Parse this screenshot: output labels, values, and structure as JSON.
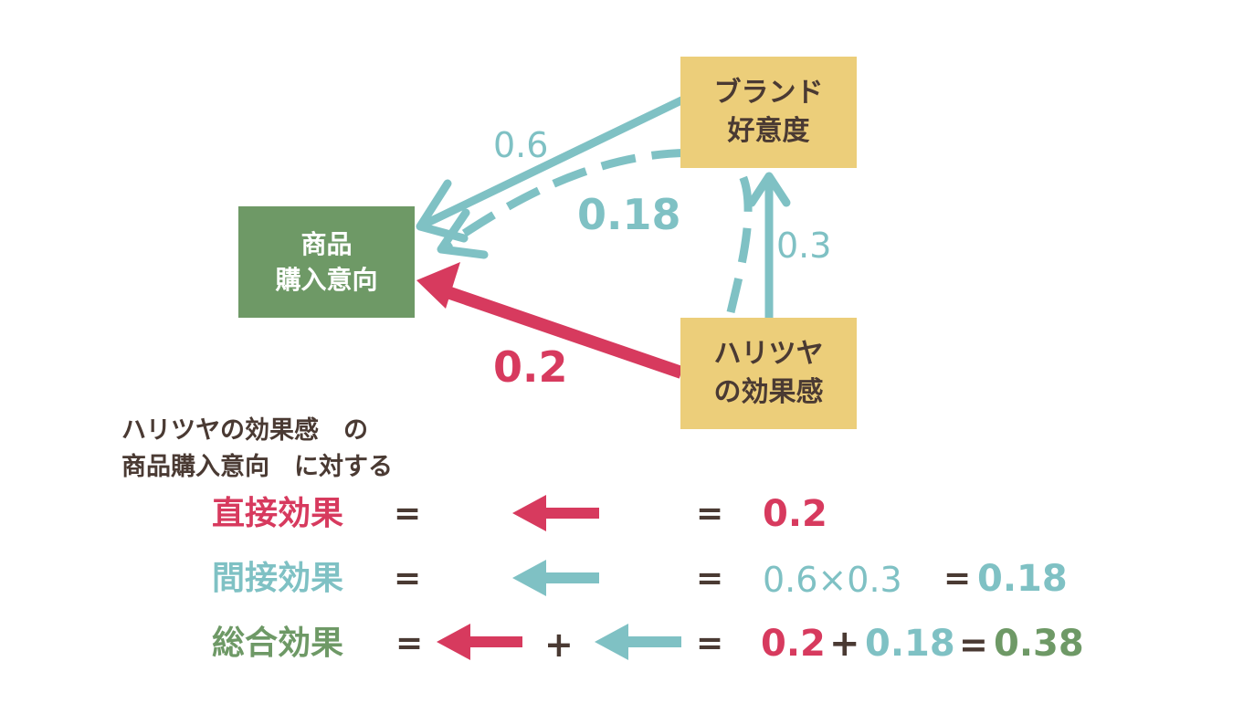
{
  "colors": {
    "red": "#d73a5e",
    "teal": "#7fc1c4",
    "green": "#6e9966",
    "yellow": "#ecce7a",
    "dark": "#4a3a33"
  },
  "nodes": {
    "purchase": [
      "商品",
      "購入意向"
    ],
    "brand": [
      "ブランド",
      "好意度"
    ],
    "harituya": [
      "ハリツヤ",
      "の効果感"
    ]
  },
  "edges": {
    "brand_to_purchase": "0.6",
    "harituya_to_brand": "0.3",
    "indirect": "0.18",
    "direct": "0.2"
  },
  "caption": {
    "line1": "ハリツヤの効果感　の",
    "line2": "商品購入意向　に対する"
  },
  "equations": {
    "direct": {
      "label": "直接効果",
      "eq1": "=",
      "eq2": "=",
      "value": "0.2"
    },
    "indirect": {
      "label": "間接効果",
      "eq1": "=",
      "eq2": "=",
      "expr": "0.6×0.3",
      "eq3": "=",
      "value": "0.18"
    },
    "total": {
      "label": "総合効果",
      "eq1": "=",
      "plus1": "+",
      "eq2": "=",
      "v1": "0.2",
      "plus2": "+",
      "v2": "0.18",
      "eq3": "=",
      "v3": "0.38"
    }
  }
}
